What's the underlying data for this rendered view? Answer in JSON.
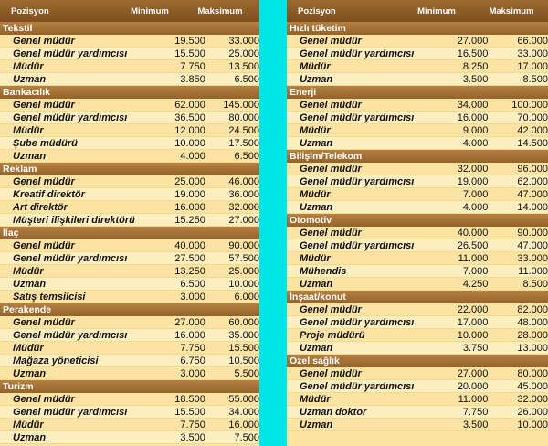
{
  "header": {
    "position": "Pozisyon",
    "min": "Minimum",
    "max": "Maksimum"
  },
  "left": [
    {
      "sector": "Tekstil",
      "rows": [
        [
          "Genel müdür",
          "19.500",
          "33.000"
        ],
        [
          "Genel müdür yardımcısı",
          "15.500",
          "25.000"
        ],
        [
          "Müdür",
          "7.750",
          "13.500"
        ],
        [
          "Uzman",
          "3.850",
          "6.500"
        ]
      ]
    },
    {
      "sector": "Bankacılık",
      "rows": [
        [
          "Genel müdür",
          "62.000",
          "145.000"
        ],
        [
          "Genel müdür yardımcısı",
          "36.500",
          "80.000"
        ],
        [
          "Müdür",
          "12.000",
          "24.500"
        ],
        [
          "Şube müdürü",
          "10.000",
          "17.500"
        ],
        [
          "Uzman",
          "4.000",
          "6.500"
        ]
      ]
    },
    {
      "sector": "Reklam",
      "rows": [
        [
          "Genel müdür",
          "25.000",
          "46.000"
        ],
        [
          "Kreatif direktör",
          "19.000",
          "36.000"
        ],
        [
          "Art direktör",
          "16.000",
          "32.000"
        ],
        [
          "Müşteri ilişkileri direktörü",
          "15.250",
          "27.000"
        ]
      ]
    },
    {
      "sector": "İlaç",
      "rows": [
        [
          "Genel müdür",
          "40.000",
          "90.000"
        ],
        [
          "Genel müdür yardımcısı",
          "27.500",
          "57.500"
        ],
        [
          "Müdür",
          "13.250",
          "25.000"
        ],
        [
          "Uzman",
          "6.500",
          "10.000"
        ],
        [
          "Satış temsilcisi",
          "3.000",
          "6.000"
        ]
      ]
    },
    {
      "sector": "Perakende",
      "rows": [
        [
          "Genel müdür",
          "27.000",
          "60.000"
        ],
        [
          "Genel müdür yardımcısı",
          "16.000",
          "35.000"
        ],
        [
          "Müdür",
          "7.750",
          "15.500"
        ],
        [
          "Mağaza yöneticisi",
          "6.750",
          "10.500"
        ],
        [
          "Uzman",
          "3.000",
          "5.500"
        ]
      ]
    },
    {
      "sector": "Turizm",
      "rows": [
        [
          "Genel müdür",
          "18.500",
          "55.000"
        ],
        [
          "Genel müdür yardımcısı",
          "15.500",
          "34.000"
        ],
        [
          "Müdür",
          "7.750",
          "16.000"
        ],
        [
          "Uzman",
          "3.500",
          "7.500"
        ]
      ]
    }
  ],
  "right": [
    {
      "sector": "Hızlı tüketim",
      "rows": [
        [
          "Genel müdür",
          "27.000",
          "66.000"
        ],
        [
          "Genel müdür yardımcısı",
          "16.500",
          "33.000"
        ],
        [
          "Müdür",
          "8.250",
          "17.000"
        ],
        [
          "Uzman",
          "3.500",
          "8.500"
        ]
      ]
    },
    {
      "sector": "Enerji",
      "rows": [
        [
          "Genel müdür",
          "34.000",
          "100.000"
        ],
        [
          "Genel müdür yardımcısı",
          "16.000",
          "70.000"
        ],
        [
          "Müdür",
          "9.000",
          "42.000"
        ],
        [
          "Uzman",
          "4.000",
          "14.500"
        ]
      ]
    },
    {
      "sector": "Bilişim/Telekom",
      "rows": [
        [
          "Genel müdür",
          "32.000",
          "96.000"
        ],
        [
          "Genel müdür yardımcısı",
          "19.000",
          "62.000"
        ],
        [
          "Müdür",
          "7.000",
          "47.000"
        ],
        [
          "Uzman",
          "4.000",
          "14.000"
        ]
      ]
    },
    {
      "sector": "Otomotiv",
      "rows": [
        [
          "Genel müdür",
          "40.000",
          "90.000"
        ],
        [
          "Genel müdür yardımcısı",
          "26.500",
          "47.000"
        ],
        [
          "Müdür",
          "11.000",
          "33.000"
        ],
        [
          "Mühendis",
          "7.000",
          "11.000"
        ],
        [
          "Uzman",
          "4.250",
          "8.500"
        ]
      ]
    },
    {
      "sector": "İnşaat/konut",
      "rows": [
        [
          "Genel müdür",
          "22.000",
          "82.000"
        ],
        [
          "Genel müdür yardımcısı",
          "17.000",
          "48.000"
        ],
        [
          "Proje müdürü",
          "10.000",
          "28.000"
        ],
        [
          "Uzman",
          "3.750",
          "13.000"
        ]
      ]
    },
    {
      "sector": "Özel sağlık",
      "rows": [
        [
          "Genel müdür",
          "27.000",
          "80.000"
        ],
        [
          "Genel müdür yardımcısı",
          "20.000",
          "45.000"
        ],
        [
          "Müdür",
          "11.000",
          "32.000"
        ],
        [
          "Uzman doktor",
          "7.750",
          "26.000"
        ],
        [
          "Uzman",
          "3.500",
          "10.000"
        ]
      ]
    }
  ]
}
